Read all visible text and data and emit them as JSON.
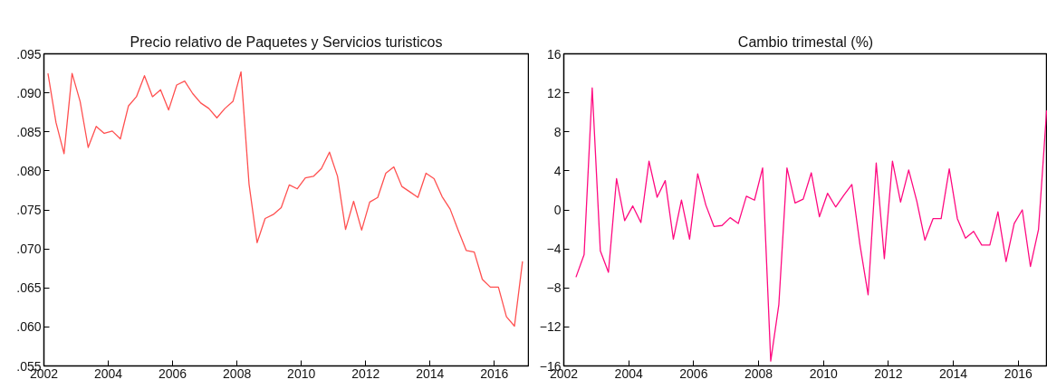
{
  "chart_data": [
    {
      "type": "line",
      "title": "Precio relativo de Paquetes y Servicios turisticos",
      "x": [
        2002.125,
        2002.375,
        2002.625,
        2002.875,
        2003.125,
        2003.375,
        2003.625,
        2003.875,
        2004.125,
        2004.375,
        2004.625,
        2004.875,
        2005.125,
        2005.375,
        2005.625,
        2005.875,
        2006.125,
        2006.375,
        2006.625,
        2006.875,
        2007.125,
        2007.375,
        2007.625,
        2007.875,
        2008.125,
        2008.375,
        2008.625,
        2008.875,
        2009.125,
        2009.375,
        2009.625,
        2009.875,
        2010.125,
        2010.375,
        2010.625,
        2010.875,
        2011.125,
        2011.375,
        2011.625,
        2011.875,
        2012.125,
        2012.375,
        2012.625,
        2012.875,
        2013.125,
        2013.375,
        2013.625,
        2013.875,
        2014.125,
        2014.375,
        2014.625,
        2014.875,
        2015.125,
        2015.375,
        2015.625,
        2015.875,
        2016.125,
        2016.375,
        2016.625,
        2016.875
      ],
      "series": [
        {
          "color": "#ff5050",
          "values": [
            0.0925,
            0.0862,
            0.0822,
            0.0925,
            0.0889,
            0.083,
            0.0857,
            0.0848,
            0.0851,
            0.0841,
            0.0883,
            0.0895,
            0.0922,
            0.0895,
            0.0904,
            0.0878,
            0.091,
            0.0915,
            0.0899,
            0.0887,
            0.088,
            0.0868,
            0.088,
            0.0889,
            0.0927,
            0.0783,
            0.0708,
            0.0739,
            0.0744,
            0.0753,
            0.0782,
            0.0777,
            0.0791,
            0.0793,
            0.0803,
            0.0824,
            0.0793,
            0.0725,
            0.0761,
            0.0724,
            0.076,
            0.0766,
            0.0797,
            0.0805,
            0.078,
            0.0773,
            0.0766,
            0.0797,
            0.079,
            0.0767,
            0.0751,
            0.0724,
            0.0698,
            0.0696,
            0.0661,
            0.0651,
            0.0651,
            0.0613,
            0.0601,
            0.0684
          ]
        }
      ],
      "xlim": [
        2002,
        2017.06
      ],
      "xticks": [
        2002,
        2004,
        2006,
        2008,
        2010,
        2012,
        2014,
        2016
      ],
      "ylim": [
        0.055,
        0.095
      ],
      "yticks": [
        {
          "value": 0.055,
          "label": ".055"
        },
        {
          "value": 0.06,
          "label": ".060"
        },
        {
          "value": 0.065,
          "label": ".065"
        },
        {
          "value": 0.07,
          "label": ".070"
        },
        {
          "value": 0.075,
          "label": ".075"
        },
        {
          "value": 0.08,
          "label": ".080"
        },
        {
          "value": 0.085,
          "label": ".085"
        },
        {
          "value": 0.09,
          "label": ".090"
        },
        {
          "value": 0.095,
          "label": ".095"
        }
      ]
    },
    {
      "type": "line",
      "title": "Cambio trimestal (%)",
      "x": [
        2002.375,
        2002.625,
        2002.875,
        2003.125,
        2003.375,
        2003.625,
        2003.875,
        2004.125,
        2004.375,
        2004.625,
        2004.875,
        2005.125,
        2005.375,
        2005.625,
        2005.875,
        2006.125,
        2006.375,
        2006.625,
        2006.875,
        2007.125,
        2007.375,
        2007.625,
        2007.875,
        2008.125,
        2008.375,
        2008.625,
        2008.875,
        2009.125,
        2009.375,
        2009.625,
        2009.875,
        2010.125,
        2010.375,
        2010.625,
        2010.875,
        2011.125,
        2011.375,
        2011.625,
        2011.875,
        2012.125,
        2012.375,
        2012.625,
        2012.875,
        2013.125,
        2013.375,
        2013.625,
        2013.875,
        2014.125,
        2014.375,
        2014.625,
        2014.875,
        2015.125,
        2015.375,
        2015.625,
        2015.875,
        2016.125,
        2016.375,
        2016.625,
        2016.875
      ],
      "series": [
        {
          "color": "#ff0a80",
          "values": [
            -6.9,
            -4.6,
            12.5,
            -4.2,
            -6.4,
            3.2,
            -1.1,
            0.4,
            -1.3,
            5.0,
            1.3,
            3.0,
            -3.0,
            1.0,
            -3.0,
            3.7,
            0.5,
            -1.7,
            -1.6,
            -0.8,
            -1.4,
            1.4,
            1.0,
            4.3,
            -15.5,
            -9.7,
            4.3,
            0.7,
            1.1,
            3.8,
            -0.7,
            1.7,
            0.3,
            1.5,
            2.6,
            -3.6,
            -8.7,
            4.8,
            -5.0,
            5.0,
            0.8,
            4.1,
            0.9,
            -3.1,
            -0.9,
            -0.9,
            4.2,
            -0.9,
            -2.9,
            -2.2,
            -3.6,
            -3.6,
            -0.2,
            -5.3,
            -1.4,
            0.0,
            -5.8,
            -2.0,
            10.2
          ]
        }
      ],
      "xlim": [
        2002,
        2016.9
      ],
      "xticks": [
        2002,
        2004,
        2006,
        2008,
        2010,
        2012,
        2014,
        2016
      ],
      "ylim": [
        -16,
        16
      ],
      "yticks": [
        -16,
        -12,
        -8,
        -4,
        0,
        4,
        8,
        12,
        16
      ]
    }
  ]
}
